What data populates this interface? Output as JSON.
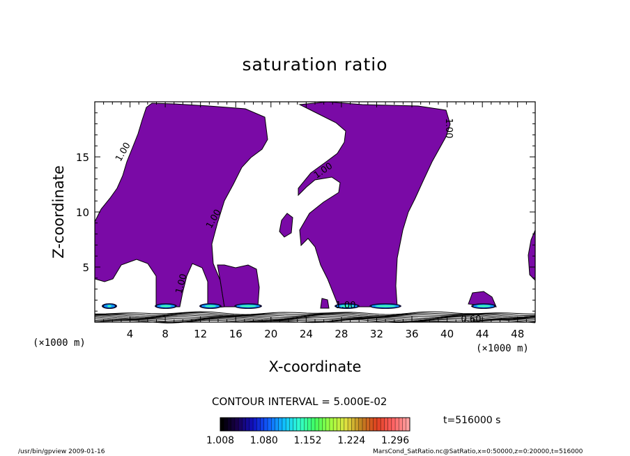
{
  "chart_data": {
    "type": "heatmap",
    "title": "saturation ratio",
    "xlabel": "X-coordinate",
    "ylabel": "Z-coordinate",
    "x_unit_label": "(×1000 m)",
    "xlim": [
      0,
      50
    ],
    "ylim": [
      0,
      20
    ],
    "x_ticks": [
      4,
      8,
      12,
      16,
      20,
      24,
      28,
      32,
      36,
      40,
      44,
      48
    ],
    "y_ticks": [
      5,
      10,
      15
    ],
    "contour_interval_text": "CONTOUR INTERVAL = 5.000E-02",
    "contour_labels": [
      "1.00",
      "1.00",
      "1.00",
      "1.00",
      "1.00",
      "1.00",
      "0.60"
    ],
    "time_label": "t=516000 s",
    "colorbar": {
      "min": 1.008,
      "max": 1.32,
      "tick_labels": [
        "1.008",
        "1.080",
        "1.152",
        "1.224",
        "1.296"
      ],
      "colors": [
        "#000000",
        "#1a0050",
        "#1010c0",
        "#1060ff",
        "#10c0ff",
        "#30ffd0",
        "#40ff60",
        "#a0ff40",
        "#e0e040",
        "#c08020",
        "#e04020",
        "#ff6060",
        "#ffa0a0"
      ]
    },
    "supersaturated_color": "#7a0aa6",
    "footer_left": "/usr/bin/gpview   2009-01-16",
    "footer_right": "MarsCond_SatRatio.nc@SatRatio,x=0:50000,z=0:20000,t=516000"
  }
}
